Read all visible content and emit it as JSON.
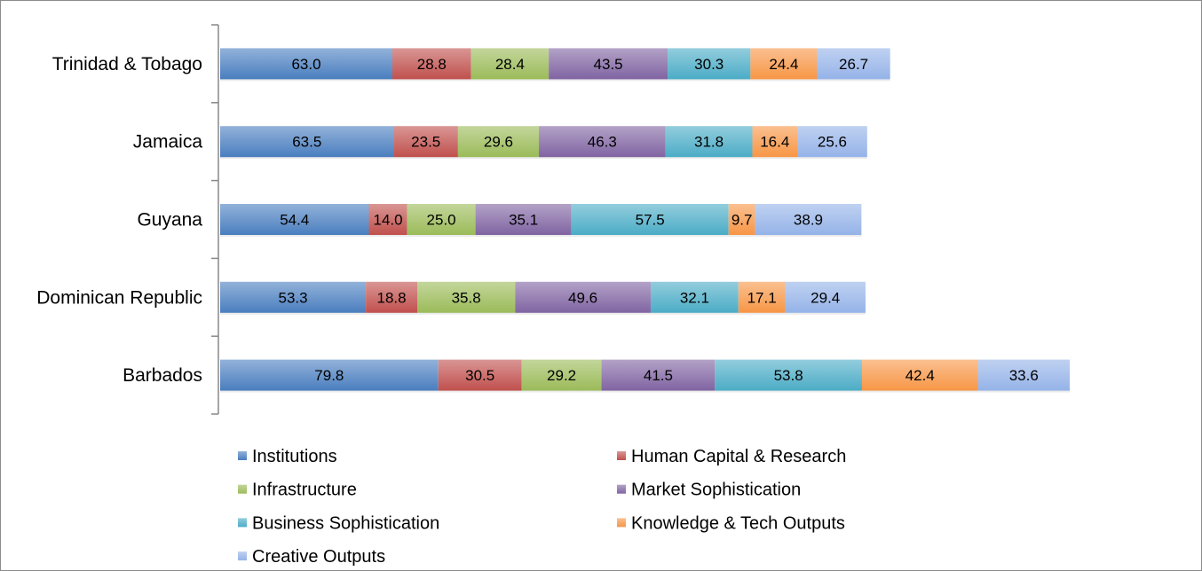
{
  "chart_data": {
    "type": "bar",
    "orientation": "horizontal",
    "stacked": true,
    "categories": [
      "Trinidad & Tobago",
      "Jamaica",
      "Guyana",
      "Dominican Republic",
      "Barbados"
    ],
    "series": [
      {
        "name": "Institutions",
        "color": "#4a7ebf",
        "values": [
          63.0,
          63.5,
          54.4,
          53.3,
          79.8
        ]
      },
      {
        "name": "Human Capital & Research",
        "color": "#c0504d",
        "values": [
          28.8,
          23.5,
          14.0,
          18.8,
          30.5
        ]
      },
      {
        "name": "Infrastructure",
        "color": "#9bbb59",
        "values": [
          28.4,
          29.6,
          25.0,
          35.8,
          29.2
        ]
      },
      {
        "name": "Market Sophistication",
        "color": "#8064a2",
        "values": [
          43.5,
          46.3,
          35.1,
          49.6,
          41.5
        ]
      },
      {
        "name": "Business Sophistication",
        "color": "#4bacc6",
        "values": [
          30.3,
          31.8,
          57.5,
          32.1,
          53.8
        ]
      },
      {
        "name": "Knowledge & Tech Outputs",
        "color": "#f79646",
        "values": [
          24.4,
          16.4,
          9.7,
          17.1,
          42.4
        ]
      },
      {
        "name": "Creative Outputs",
        "color": "#95b3e8",
        "values": [
          26.7,
          25.6,
          38.9,
          29.4,
          33.6
        ]
      }
    ],
    "title": "",
    "xlabel": "",
    "ylabel": "",
    "xlim": [
      0,
      310.8
    ],
    "grid": false,
    "legend_position": "bottom"
  }
}
